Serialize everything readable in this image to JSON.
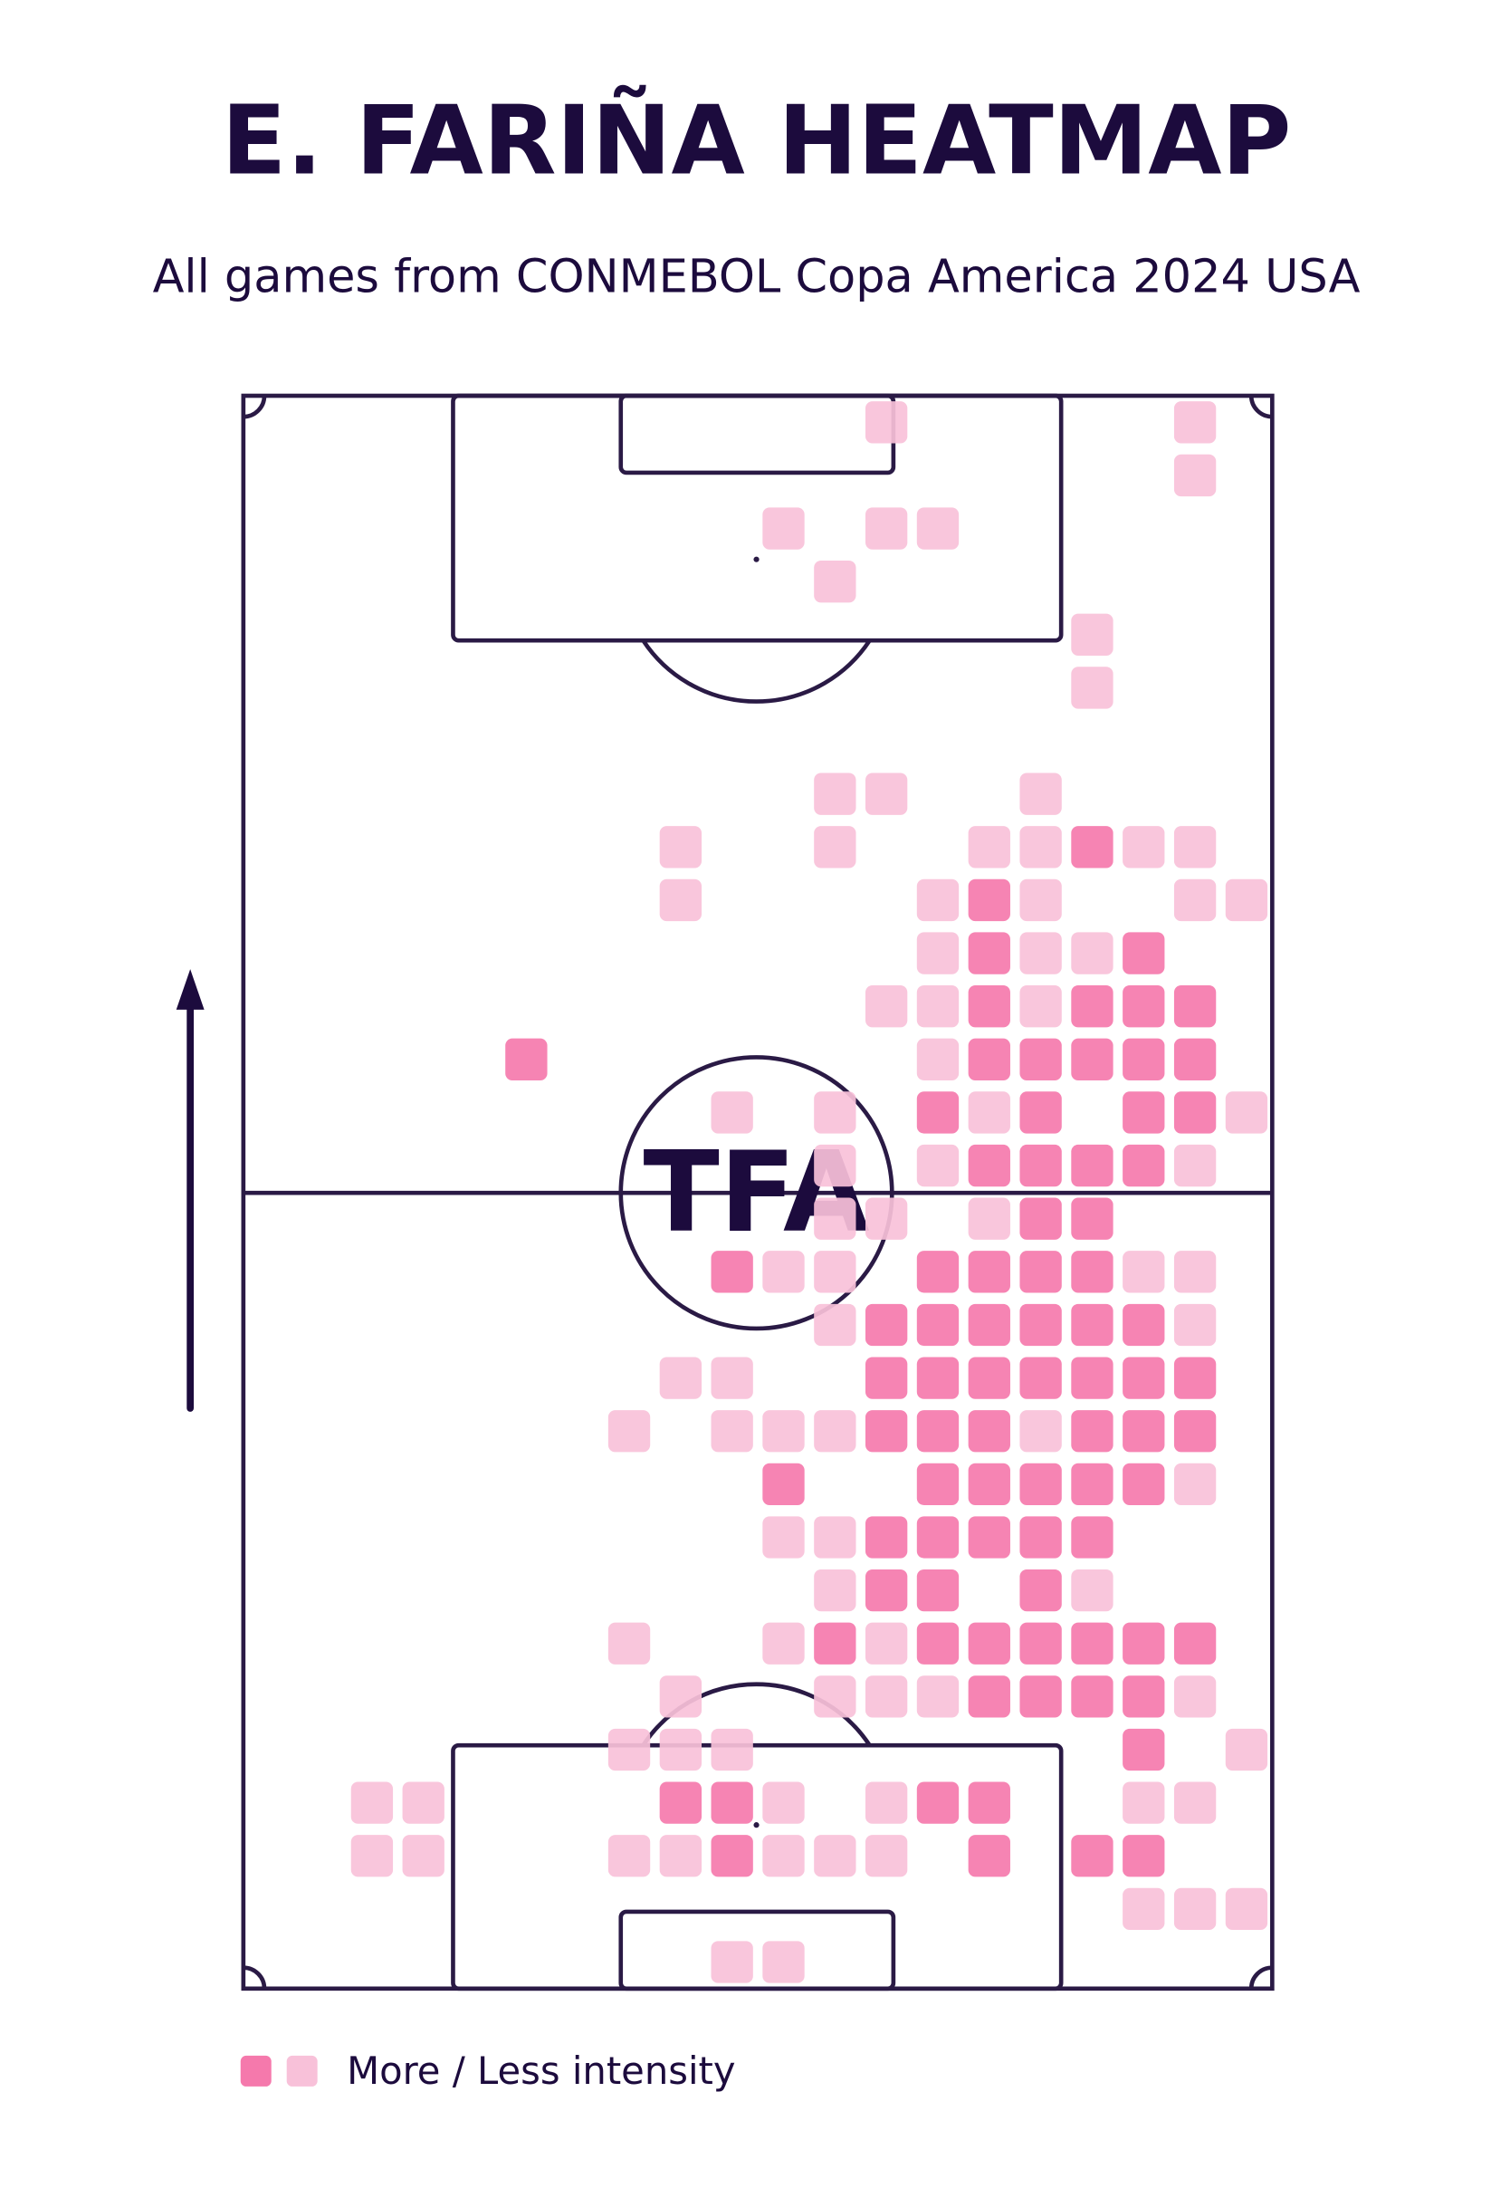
{
  "title": "E. FARIÑA HEATMAP",
  "subtitle": "All games from CONMEBOL Copa America 2024 USA",
  "watermark": "TFA",
  "chart_data": {
    "type": "heatmap",
    "legend": "More / Less intensity",
    "colors": [
      "#f8c1d9",
      "#f579ac"
    ],
    "xlim": [
      -0.5,
      19.5
    ],
    "ylim": [
      29.5,
      -0.5
    ],
    "x": [
      12,
      18,
      18,
      10,
      12,
      13,
      11,
      16,
      16,
      11,
      12,
      15,
      8,
      11,
      14,
      15,
      16,
      17,
      18,
      8,
      13,
      14,
      15,
      18,
      19,
      13,
      14,
      15,
      16,
      17,
      12,
      13,
      14,
      15,
      16,
      17,
      18,
      5,
      13,
      14,
      15,
      16,
      17,
      18,
      9,
      11,
      13,
      14,
      15,
      17,
      18,
      19,
      11,
      13,
      14,
      15,
      16,
      17,
      18,
      11,
      12,
      14,
      15,
      16,
      9,
      10,
      11,
      13,
      14,
      15,
      16,
      17,
      18,
      11,
      12,
      13,
      14,
      15,
      16,
      17,
      18,
      8,
      9,
      12,
      13,
      14,
      15,
      16,
      17,
      18,
      7,
      9,
      10,
      11,
      12,
      13,
      14,
      15,
      16,
      17,
      18,
      10,
      13,
      14,
      15,
      16,
      17,
      18,
      10,
      11,
      12,
      13,
      14,
      15,
      16,
      11,
      12,
      13,
      15,
      16,
      7,
      10,
      11,
      12,
      13,
      14,
      15,
      16,
      17,
      18,
      8,
      11,
      12,
      13,
      14,
      15,
      16,
      17,
      18,
      7,
      8,
      9,
      17,
      19,
      2,
      3,
      8,
      9,
      10,
      12,
      13,
      14,
      17,
      18,
      2,
      3,
      7,
      8,
      9,
      10,
      11,
      12,
      14,
      16,
      17,
      17,
      18,
      19,
      9,
      10
    ],
    "y": [
      0,
      0,
      1,
      2,
      2,
      2,
      3,
      4,
      5,
      7,
      7,
      7,
      8,
      8,
      8,
      8,
      8,
      8,
      8,
      9,
      9,
      9,
      9,
      9,
      9,
      10,
      10,
      10,
      10,
      10,
      11,
      11,
      11,
      11,
      11,
      11,
      11,
      12,
      12,
      12,
      12,
      12,
      12,
      12,
      13,
      13,
      13,
      13,
      13,
      13,
      13,
      13,
      14,
      14,
      14,
      14,
      14,
      14,
      14,
      15,
      15,
      15,
      15,
      15,
      16,
      16,
      16,
      16,
      16,
      16,
      16,
      16,
      16,
      17,
      17,
      17,
      17,
      17,
      17,
      17,
      17,
      18,
      18,
      18,
      18,
      18,
      18,
      18,
      18,
      18,
      19,
      19,
      19,
      19,
      19,
      19,
      19,
      19,
      19,
      19,
      19,
      20,
      20,
      20,
      20,
      20,
      20,
      20,
      21,
      21,
      21,
      21,
      21,
      21,
      21,
      22,
      22,
      22,
      22,
      22,
      23,
      23,
      23,
      23,
      23,
      23,
      23,
      23,
      23,
      23,
      24,
      24,
      24,
      24,
      24,
      24,
      24,
      24,
      24,
      25,
      25,
      25,
      25,
      25,
      26,
      26,
      26,
      26,
      26,
      26,
      26,
      26,
      26,
      26,
      27,
      27,
      27,
      27,
      27,
      27,
      27,
      27,
      27,
      27,
      27,
      28,
      28,
      28,
      29,
      29
    ],
    "values": [
      1,
      1,
      1,
      1,
      1,
      1,
      1,
      1,
      1,
      1,
      1,
      1,
      1,
      1,
      1,
      1,
      2,
      1,
      1,
      1,
      1,
      2,
      1,
      1,
      1,
      1,
      2,
      1,
      1,
      2,
      1,
      1,
      2,
      1,
      2,
      2,
      2,
      2,
      1,
      2,
      2,
      2,
      2,
      2,
      1,
      1,
      2,
      1,
      2,
      2,
      2,
      1,
      1,
      1,
      2,
      2,
      2,
      2,
      1,
      1,
      1,
      1,
      2,
      2,
      2,
      1,
      1,
      2,
      2,
      2,
      2,
      1,
      1,
      1,
      2,
      2,
      2,
      2,
      2,
      2,
      1,
      1,
      1,
      2,
      2,
      2,
      2,
      2,
      2,
      2,
      1,
      1,
      1,
      1,
      2,
      2,
      2,
      1,
      2,
      2,
      2,
      2,
      2,
      2,
      2,
      2,
      2,
      1,
      1,
      1,
      2,
      2,
      2,
      2,
      2,
      1,
      2,
      2,
      2,
      1,
      1,
      1,
      2,
      1,
      2,
      2,
      2,
      2,
      2,
      2,
      1,
      1,
      1,
      1,
      2,
      2,
      2,
      2,
      1,
      1,
      1,
      1,
      2,
      1,
      1,
      1,
      2,
      2,
      1,
      1,
      2,
      2,
      1,
      1,
      1,
      1,
      1,
      1,
      2,
      1,
      1,
      1,
      2,
      2,
      2,
      1,
      1,
      1,
      1,
      1
    ]
  }
}
